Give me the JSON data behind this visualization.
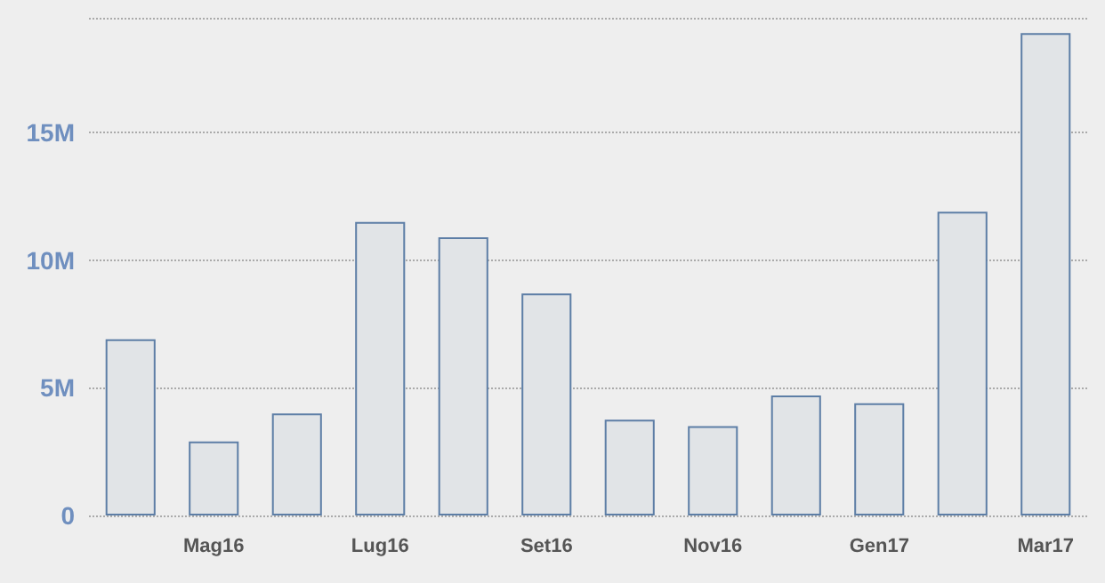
{
  "chart_data": {
    "type": "bar",
    "categories": [
      null,
      "Mag16",
      null,
      "Lug16",
      null,
      "Set16",
      null,
      "Nov16",
      null,
      "Gen17",
      null,
      "Mar17"
    ],
    "values": [
      6900000,
      2900000,
      4000000,
      11500000,
      10900000,
      8700000,
      3750000,
      3500000,
      4700000,
      4400000,
      11900000,
      18900000
    ],
    "color": "#e1e4e7",
    "ylim": [
      0,
      19500000
    ],
    "yticks": [
      {
        "value": 0,
        "label": "0"
      },
      {
        "value": 5000000,
        "label": "5M"
      },
      {
        "value": 10000000,
        "label": "10M"
      },
      {
        "value": 15000000,
        "label": "15M"
      }
    ],
    "grid": "y"
  }
}
